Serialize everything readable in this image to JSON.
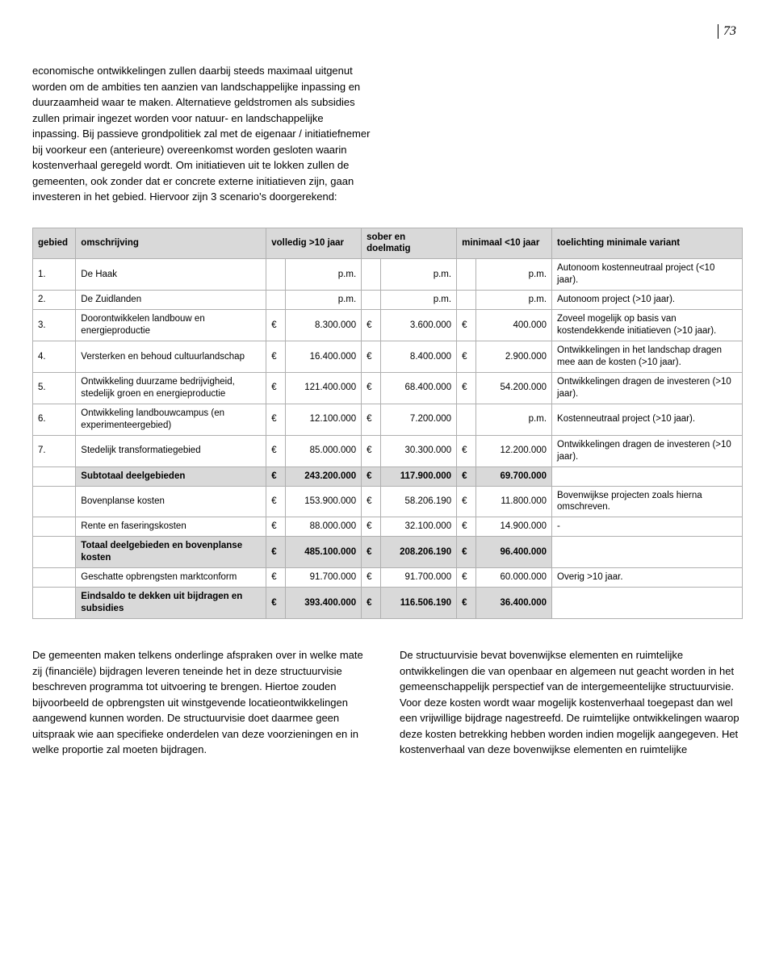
{
  "page_number": "73",
  "intro_text": "economische ontwikkelingen zullen daarbij steeds maximaal uitgenut worden om de ambities ten aanzien van landschappelijke inpassing en duurzaamheid waar te maken. Alternatieve geldstromen als subsidies zullen primair ingezet worden voor natuur- en landschappelijke inpassing. Bij passieve grondpolitiek zal met de eigenaar / initiatiefnemer bij voorkeur een (anterieure) overeenkomst worden gesloten waarin kostenverhaal geregeld wordt. Om initiatieven uit te lokken zullen de gemeenten, ook zonder dat er concrete externe initiatieven zijn, gaan investeren in het gebied. Hiervoor zijn 3 scenario's doorgerekend:",
  "table": {
    "headers": {
      "gebied": "gebied",
      "omschrijving": "omschrijving",
      "volledig": "volledig >10 jaar",
      "sober": "sober en doelmatig",
      "minimaal": "minimaal <10 jaar",
      "toelichting": "toelichting minimale variant"
    },
    "rows": [
      {
        "n": "1.",
        "desc": "De Haak",
        "v": "p.m.",
        "s": "p.m.",
        "m": "p.m.",
        "t": "Autonoom kostenneutraal project (<10 jaar).",
        "bold": false
      },
      {
        "n": "2.",
        "desc": "De Zuidlanden",
        "v": "p.m.",
        "s": "p.m.",
        "m": "p.m.",
        "t": "Autonoom project (>10 jaar).",
        "bold": false
      },
      {
        "n": "3.",
        "desc": "Doorontwikkelen landbouw en energieproductie",
        "v": "8.300.000",
        "s": "3.600.000",
        "m": "400.000",
        "t": "Zoveel mogelijk op basis van kostendekkende initiatieven (>10 jaar).",
        "bold": false
      },
      {
        "n": "4.",
        "desc": "Versterken en behoud cultuurlandschap",
        "v": "16.400.000",
        "s": "8.400.000",
        "m": "2.900.000",
        "t": "Ontwikkelingen in het landschap dragen mee aan de kosten (>10 jaar).",
        "bold": false
      },
      {
        "n": "5.",
        "desc": "Ontwikkeling duurzame bedrijvigheid, stedelijk groen en energieproductie",
        "v": "121.400.000",
        "s": "68.400.000",
        "m": "54.200.000",
        "t": "Ontwikkelingen dragen de investeren (>10 jaar).",
        "bold": false
      },
      {
        "n": "6.",
        "desc": "Ontwikkeling landbouwcampus (en experimenteergebied)",
        "v": "12.100.000",
        "s": "7.200.000",
        "m": "p.m.",
        "t": "Kostenneutraal project (>10 jaar).",
        "bold": false
      },
      {
        "n": "7.",
        "desc": "Stedelijk transformatiegebied",
        "v": "85.000.000",
        "s": "30.300.000",
        "m": "12.200.000",
        "t": "Ontwikkelingen dragen de investeren (>10 jaar).",
        "bold": false
      },
      {
        "n": "",
        "desc": "Subtotaal deelgebieden",
        "v": "243.200.000",
        "s": "117.900.000",
        "m": "69.700.000",
        "t": "",
        "bold": true
      },
      {
        "n": "",
        "desc": "Bovenplanse kosten",
        "v": "153.900.000",
        "s": "58.206.190",
        "m": "11.800.000",
        "t": "Bovenwijkse projecten zoals hierna omschreven.",
        "bold": false
      },
      {
        "n": "",
        "desc": "Rente en faseringskosten",
        "v": "88.000.000",
        "s": "32.100.000",
        "m": "14.900.000",
        "t": "-",
        "bold": false
      },
      {
        "n": "",
        "desc": "Totaal deelgebieden en bovenplanse kosten",
        "v": "485.100.000",
        "s": "208.206.190",
        "m": "96.400.000",
        "t": "",
        "bold": true
      },
      {
        "n": "",
        "desc": "Geschatte opbrengsten marktconform",
        "v": "91.700.000",
        "s": "91.700.000",
        "m": "60.000.000",
        "t": "Overig >10 jaar.",
        "bold": false
      },
      {
        "n": "",
        "desc": "Eindsaldo te dekken uit bijdragen en subsidies",
        "v": "393.400.000",
        "s": "116.506.190",
        "m": "36.400.000",
        "t": "",
        "bold": true
      }
    ],
    "currency": "€"
  },
  "bottom": {
    "left": "De gemeenten maken telkens onderlinge afspraken over in welke mate zij (financiële) bijdragen leveren teneinde het in deze structuurvisie beschreven programma tot uitvoering te brengen. Hiertoe zouden bijvoorbeeld de opbrengsten uit winstgevende locatieontwikkelingen aangewend kunnen worden. De structuurvisie doet daarmee geen uitspraak wie aan specifieke onderdelen van deze voorzieningen en in welke proportie zal moeten bijdragen.",
    "right": "De structuurvisie bevat bovenwijkse elementen en ruimtelijke ontwikkelingen die van openbaar en algemeen nut geacht worden in het gemeenschappelijk perspectief van de intergemeentelijke structuurvisie. Voor deze kosten wordt waar mogelijk kostenverhaal toegepast dan wel een vrijwillige bijdrage nagestreefd. De ruimtelijke ontwikkelingen waarop deze kosten betrekking hebben worden indien mogelijk aangegeven. Het kostenverhaal van deze bovenwijkse elementen en ruimtelijke"
  }
}
